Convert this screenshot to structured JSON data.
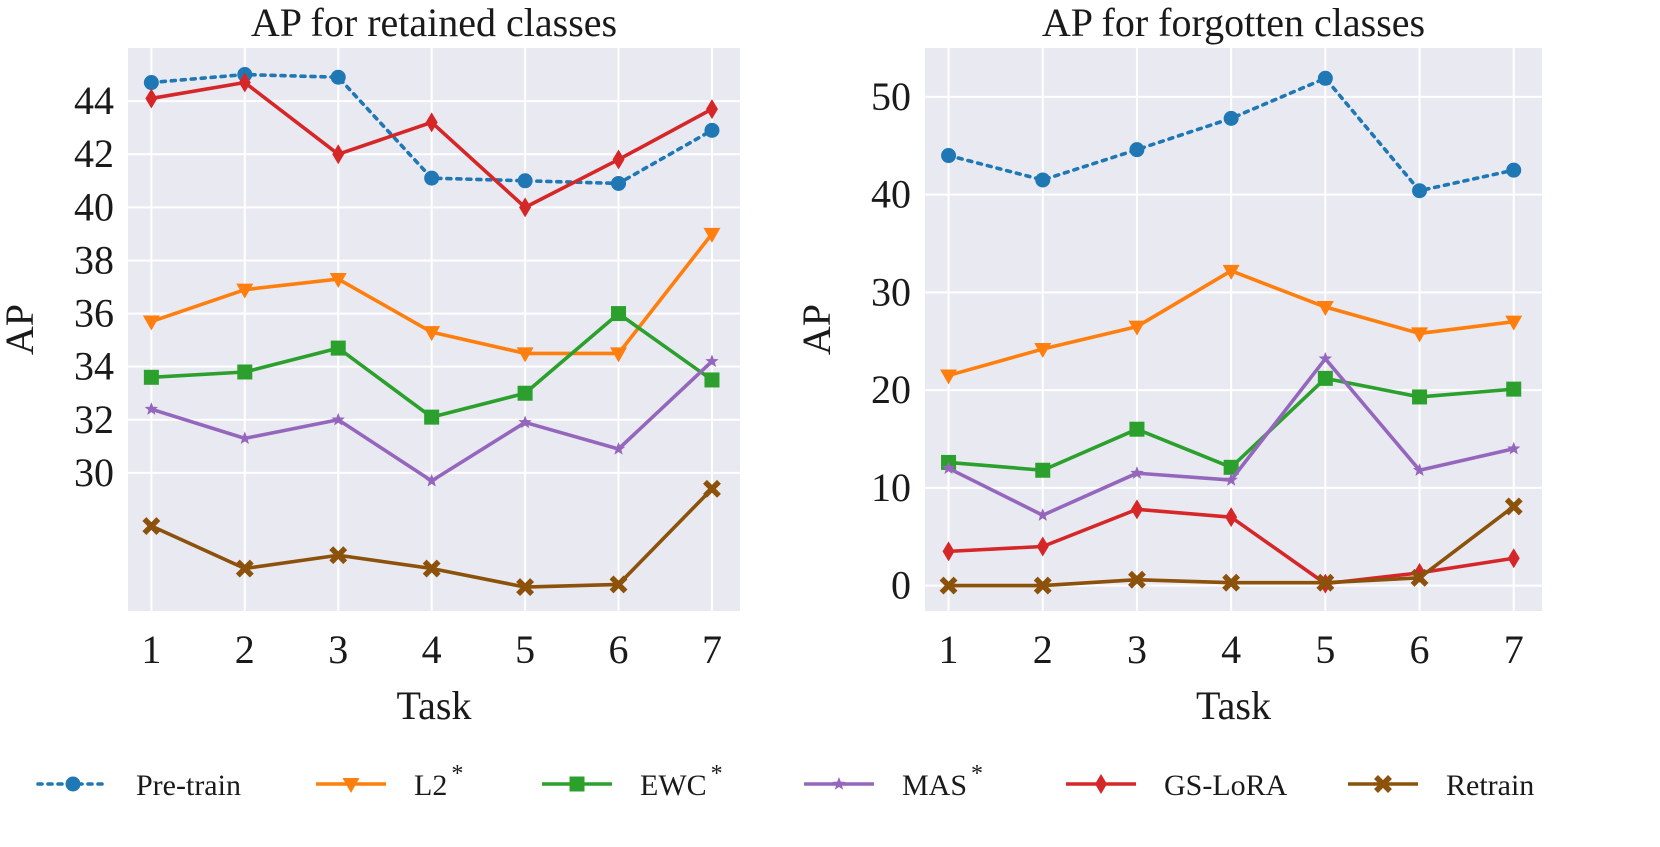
{
  "chart_data": [
    {
      "type": "line",
      "title": "AP for retained classes",
      "xlabel": "Task",
      "ylabel": "AP",
      "categories": [
        "1",
        "2",
        "3",
        "4",
        "5",
        "6",
        "7"
      ],
      "xlim": [
        0.75,
        7.3
      ],
      "ylim": [
        24.8,
        46.0
      ],
      "yticks": [
        30,
        32,
        34,
        36,
        38,
        40,
        42,
        44
      ],
      "yticklabels": [
        "30",
        "32",
        "34",
        "36",
        "38",
        "40",
        "42",
        "44"
      ],
      "grid": true,
      "series": [
        {
          "name": "Pre-train",
          "values": [
            44.7,
            45.0,
            44.9,
            41.1,
            41.0,
            40.9,
            42.9
          ]
        },
        {
          "name": "L2*",
          "values": [
            35.7,
            36.9,
            37.3,
            35.3,
            34.5,
            34.5,
            39.0
          ]
        },
        {
          "name": "EWC*",
          "values": [
            33.6,
            33.8,
            34.7,
            32.1,
            33.0,
            36.0,
            33.5
          ]
        },
        {
          "name": "MAS*",
          "values": [
            32.4,
            31.3,
            32.0,
            29.7,
            31.9,
            30.9,
            34.2
          ]
        },
        {
          "name": "GS-LoRA",
          "values": [
            44.1,
            44.7,
            42.0,
            43.2,
            40.0,
            41.8,
            43.7
          ]
        },
        {
          "name": "Retrain",
          "values": [
            28.0,
            26.4,
            26.9,
            26.4,
            25.7,
            25.8,
            29.4
          ]
        }
      ]
    },
    {
      "type": "line",
      "title": "AP for forgotten classes",
      "xlabel": "Task",
      "ylabel": "AP",
      "categories": [
        "1",
        "2",
        "3",
        "4",
        "5",
        "6",
        "7"
      ],
      "xlim": [
        0.75,
        7.3
      ],
      "ylim": [
        -2.6,
        55.0
      ],
      "yticks": [
        0,
        10,
        20,
        30,
        40,
        50
      ],
      "yticklabels": [
        "0",
        "10",
        "20",
        "30",
        "40",
        "50"
      ],
      "grid": true,
      "series": [
        {
          "name": "Pre-train",
          "values": [
            44.0,
            41.5,
            44.6,
            47.8,
            51.9,
            40.4,
            42.5
          ]
        },
        {
          "name": "L2*",
          "values": [
            21.5,
            24.2,
            26.5,
            32.2,
            28.5,
            25.8,
            27.0
          ]
        },
        {
          "name": "EWC*",
          "values": [
            12.6,
            11.8,
            16.0,
            12.1,
            21.2,
            19.3,
            20.1
          ]
        },
        {
          "name": "MAS*",
          "values": [
            12.0,
            7.2,
            11.5,
            10.8,
            23.2,
            11.8,
            14.0
          ]
        },
        {
          "name": "GS-LoRA",
          "values": [
            3.5,
            4.0,
            7.8,
            7.0,
            0.2,
            1.3,
            2.8
          ]
        },
        {
          "name": "Retrain",
          "values": [
            0.0,
            0.0,
            0.6,
            0.3,
            0.3,
            0.8,
            8.1
          ]
        }
      ]
    }
  ],
  "legend": {
    "position": "bottom",
    "items": [
      {
        "label": "Pre-train",
        "superscript": "",
        "color": "#1f77b4",
        "marker": "circle",
        "dash": "dotted"
      },
      {
        "label": "L2",
        "superscript": "*",
        "color": "#ff7f0e",
        "marker": "triangle-down",
        "dash": "solid"
      },
      {
        "label": "EWC",
        "superscript": "*",
        "color": "#2ca02c",
        "marker": "square",
        "dash": "solid"
      },
      {
        "label": "MAS",
        "superscript": "*",
        "color": "#9467bd",
        "marker": "star",
        "dash": "solid"
      },
      {
        "label": "GS-LoRA",
        "superscript": "",
        "color": "#d62728",
        "marker": "diamond",
        "dash": "solid"
      },
      {
        "label": "Retrain",
        "superscript": "",
        "color": "#8c510a",
        "marker": "x",
        "dash": "solid"
      }
    ]
  },
  "colors": {
    "plot_bg": "#e9e9f2",
    "grid": "#ffffff"
  }
}
